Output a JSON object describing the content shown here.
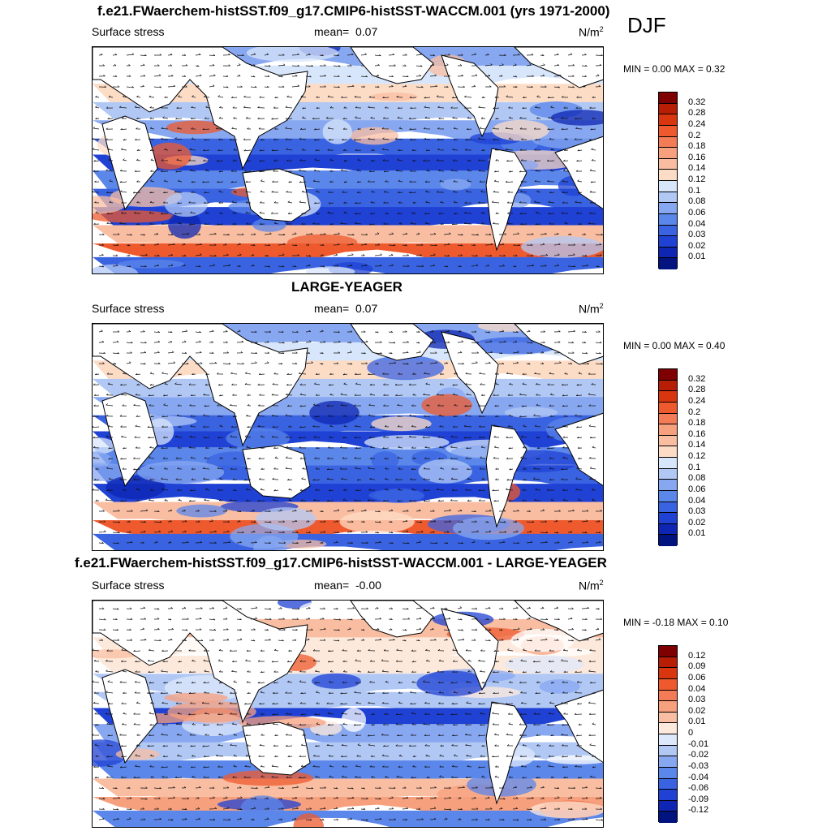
{
  "top_title": "f.e21.FWaerchem-histSST.f09_g17.CMIP6-histSST-WACCM.001 (yrs 1971-2000)",
  "season": "DJF",
  "panels": [
    {
      "title": "",
      "variable": "Surface stress",
      "mean_label": "mean=",
      "mean_value": "0.07",
      "unit_base": "N/m",
      "unit_exp": "2",
      "minmax": "MIN =   0.00 MAX =   0.32",
      "colorbar": {
        "colors": [
          "#7f0000",
          "#b81d05",
          "#d9360f",
          "#ee5a2e",
          "#f37b55",
          "#f7a07d",
          "#f9bea2",
          "#fddcc6",
          "#d8e6fb",
          "#b1c8f5",
          "#87a7f0",
          "#5b86ea",
          "#3a63e2",
          "#1f41d4",
          "#0e26b3",
          "#00137f"
        ],
        "labels": [
          "0.32",
          "0.28",
          "0.24",
          "0.2",
          "0.18",
          "0.16",
          "0.14",
          "0.12",
          "0.1",
          "0.08",
          "0.06",
          "0.04",
          "0.03",
          "0.02",
          "0.01"
        ]
      }
    },
    {
      "title": "LARGE-YEAGER",
      "variable": "Surface stress",
      "mean_label": "mean=",
      "mean_value": "0.07",
      "unit_base": "N/m",
      "unit_exp": "2",
      "minmax": "MIN =   0.00 MAX =   0.40",
      "colorbar": {
        "colors": [
          "#7f0000",
          "#b81d05",
          "#d9360f",
          "#ee5a2e",
          "#f37b55",
          "#f7a07d",
          "#f9bea2",
          "#fddcc6",
          "#d8e6fb",
          "#b1c8f5",
          "#87a7f0",
          "#5b86ea",
          "#3a63e2",
          "#1f41d4",
          "#0e26b3",
          "#00137f"
        ],
        "labels": [
          "0.32",
          "0.28",
          "0.24",
          "0.2",
          "0.18",
          "0.16",
          "0.14",
          "0.12",
          "0.1",
          "0.08",
          "0.06",
          "0.04",
          "0.03",
          "0.02",
          "0.01"
        ]
      }
    },
    {
      "title": "f.e21.FWaerchem-histSST.f09_g17.CMIP6-histSST-WACCM.001 - LARGE-YEAGER",
      "variable": "Surface stress",
      "mean_label": "mean=",
      "mean_value": "-0.00",
      "unit_base": "N/m",
      "unit_exp": "2",
      "minmax": "MIN =  -0.18 MAX =   0.10",
      "colorbar": {
        "colors": [
          "#7f0000",
          "#b81d05",
          "#d9360f",
          "#ee5a2e",
          "#f37b55",
          "#f7a07d",
          "#f9bea2",
          "#fde9dc",
          "#dde8fb",
          "#b1c8f5",
          "#87a7f0",
          "#5b86ea",
          "#3a63e2",
          "#1f41d4",
          "#0e26b3",
          "#00137f"
        ],
        "labels": [
          "0.12",
          "0.09",
          "0.06",
          "0.04",
          "0.03",
          "0.02",
          "0.01",
          "0",
          "-0.01",
          "-0.02",
          "-0.03",
          "-0.04",
          "-0.06",
          "-0.09",
          "-0.12"
        ]
      }
    }
  ]
}
